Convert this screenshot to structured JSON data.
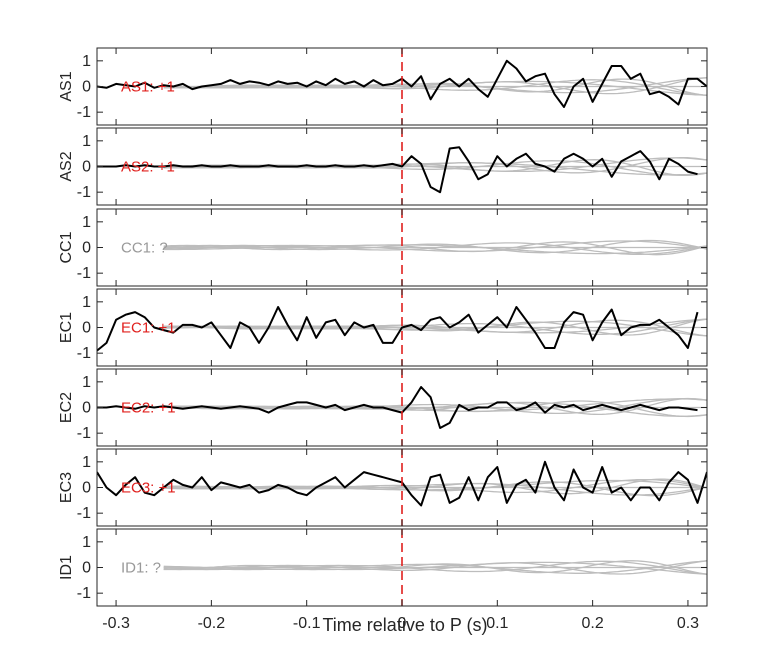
{
  "chart_data": {
    "type": "line",
    "xlabel": "Time relative to P (s)",
    "xlim": [
      -0.32,
      0.32
    ],
    "xticks": [
      -0.3,
      -0.2,
      -0.1,
      0,
      0.1,
      0.2,
      0.3
    ],
    "xtick_labels": [
      "-0.3",
      "-0.2",
      "-0.1",
      "0",
      "0.1",
      "0.2",
      "0.3"
    ],
    "ylim": [
      -1.5,
      1.5
    ],
    "yticks": [
      1,
      0,
      -1
    ],
    "ytick_labels": [
      "1",
      "0",
      "-1"
    ],
    "pick_time": 0,
    "pick_color": "#e0201e",
    "gray_color": "#bdbdbd",
    "trace_color": "#000000",
    "panels": [
      {
        "station": "AS1",
        "annotation": "AS1: +1",
        "annotation_color": "#e0201e",
        "has_trace": true,
        "x": [
          -0.32,
          -0.31,
          -0.3,
          -0.29,
          -0.28,
          -0.27,
          -0.26,
          -0.25,
          -0.24,
          -0.23,
          -0.22,
          -0.21,
          -0.2,
          -0.19,
          -0.18,
          -0.17,
          -0.16,
          -0.15,
          -0.14,
          -0.13,
          -0.12,
          -0.11,
          -0.1,
          -0.09,
          -0.08,
          -0.07,
          -0.06,
          -0.05,
          -0.04,
          -0.03,
          -0.02,
          -0.01,
          0.0,
          0.01,
          0.02,
          0.03,
          0.04,
          0.05,
          0.06,
          0.07,
          0.08,
          0.09,
          0.1,
          0.11,
          0.12,
          0.13,
          0.14,
          0.15,
          0.16,
          0.17,
          0.18,
          0.19,
          0.2,
          0.21,
          0.22,
          0.23,
          0.24,
          0.25,
          0.26,
          0.27,
          0.28,
          0.29,
          0.3,
          0.31,
          0.32
        ],
        "y": [
          0.0,
          -0.05,
          0.1,
          0.05,
          0.0,
          0.15,
          -0.05,
          0.05,
          0.0,
          0.1,
          -0.1,
          0.0,
          0.05,
          0.1,
          0.25,
          0.1,
          0.2,
          0.15,
          0.05,
          0.2,
          0.1,
          0.15,
          0.0,
          0.2,
          0.05,
          0.3,
          0.1,
          0.2,
          0.0,
          0.25,
          0.05,
          0.1,
          0.3,
          0.0,
          0.4,
          -0.5,
          0.1,
          0.3,
          0.0,
          0.3,
          -0.1,
          -0.4,
          0.3,
          1.0,
          0.7,
          0.2,
          0.4,
          0.5,
          -0.3,
          -0.8,
          0.0,
          0.3,
          -0.6,
          0.1,
          0.8,
          0.8,
          0.3,
          0.5,
          -0.3,
          -0.2,
          -0.4,
          -0.7,
          0.3,
          0.3,
          0.0
        ]
      },
      {
        "station": "AS2",
        "annotation": "AS2: +1",
        "annotation_color": "#e0201e",
        "has_trace": true,
        "x": [
          -0.32,
          -0.31,
          -0.3,
          -0.29,
          -0.28,
          -0.27,
          -0.26,
          -0.25,
          -0.24,
          -0.23,
          -0.22,
          -0.21,
          -0.2,
          -0.19,
          -0.18,
          -0.17,
          -0.16,
          -0.15,
          -0.14,
          -0.13,
          -0.12,
          -0.11,
          -0.1,
          -0.09,
          -0.08,
          -0.07,
          -0.06,
          -0.05,
          -0.04,
          -0.03,
          -0.02,
          -0.01,
          0.0,
          0.01,
          0.02,
          0.03,
          0.04,
          0.05,
          0.06,
          0.07,
          0.08,
          0.09,
          0.1,
          0.11,
          0.12,
          0.13,
          0.14,
          0.15,
          0.16,
          0.17,
          0.18,
          0.19,
          0.2,
          0.21,
          0.22,
          0.23,
          0.24,
          0.25,
          0.26,
          0.27,
          0.28,
          0.29,
          0.3,
          0.31
        ],
        "y": [
          0.0,
          0.0,
          0.0,
          0.05,
          0.0,
          0.05,
          0.0,
          0.0,
          0.05,
          0.0,
          0.0,
          0.05,
          0.0,
          0.0,
          0.05,
          0.0,
          0.0,
          0.0,
          0.05,
          0.0,
          0.0,
          0.0,
          0.05,
          0.0,
          0.0,
          0.05,
          0.0,
          0.0,
          0.05,
          0.0,
          0.05,
          0.1,
          0.0,
          0.4,
          0.1,
          -0.8,
          -1.0,
          0.7,
          0.75,
          0.2,
          -0.5,
          -0.3,
          0.4,
          0.0,
          0.3,
          0.5,
          0.1,
          0.0,
          -0.2,
          0.3,
          0.5,
          0.3,
          0.0,
          0.3,
          -0.4,
          0.2,
          0.4,
          0.6,
          0.2,
          -0.5,
          0.3,
          0.1,
          -0.2,
          -0.3
        ]
      },
      {
        "station": "CC1",
        "annotation": "CC1: ?",
        "annotation_color": "#999999",
        "has_trace": false,
        "x": [],
        "y": []
      },
      {
        "station": "EC1",
        "annotation": "EC1: +1",
        "annotation_color": "#e0201e",
        "has_trace": true,
        "x": [
          -0.32,
          -0.31,
          -0.3,
          -0.29,
          -0.28,
          -0.27,
          -0.26,
          -0.25,
          -0.24,
          -0.23,
          -0.22,
          -0.21,
          -0.2,
          -0.19,
          -0.18,
          -0.17,
          -0.16,
          -0.15,
          -0.14,
          -0.13,
          -0.12,
          -0.11,
          -0.1,
          -0.09,
          -0.08,
          -0.07,
          -0.06,
          -0.05,
          -0.04,
          -0.03,
          -0.02,
          -0.01,
          0.0,
          0.01,
          0.02,
          0.03,
          0.04,
          0.05,
          0.06,
          0.07,
          0.08,
          0.09,
          0.1,
          0.11,
          0.12,
          0.13,
          0.14,
          0.15,
          0.16,
          0.17,
          0.18,
          0.19,
          0.2,
          0.21,
          0.22,
          0.23,
          0.24,
          0.25,
          0.26,
          0.27,
          0.28,
          0.29,
          0.3,
          0.31
        ],
        "y": [
          -0.9,
          -0.6,
          0.3,
          0.5,
          0.6,
          0.4,
          0.0,
          -0.1,
          -0.2,
          0.1,
          0.1,
          0.0,
          0.2,
          -0.3,
          -0.8,
          0.2,
          0.0,
          -0.6,
          0.0,
          0.8,
          0.1,
          -0.5,
          0.4,
          -0.4,
          0.2,
          0.3,
          -0.3,
          0.2,
          0.0,
          0.1,
          -0.6,
          -0.6,
          0.0,
          0.1,
          -0.1,
          0.3,
          0.4,
          0.0,
          0.2,
          0.5,
          -0.2,
          0.1,
          0.4,
          0.0,
          0.8,
          0.3,
          -0.2,
          -0.8,
          -0.8,
          0.2,
          0.6,
          0.5,
          -0.5,
          0.2,
          0.7,
          -0.3,
          0.0,
          0.1,
          0.1,
          0.3,
          0.0,
          -0.3,
          -0.8,
          0.6
        ]
      },
      {
        "station": "EC2",
        "annotation": "EC2: +1",
        "annotation_color": "#e0201e",
        "has_trace": true,
        "x": [
          -0.32,
          -0.31,
          -0.3,
          -0.29,
          -0.28,
          -0.27,
          -0.26,
          -0.25,
          -0.24,
          -0.23,
          -0.22,
          -0.21,
          -0.2,
          -0.19,
          -0.18,
          -0.17,
          -0.16,
          -0.15,
          -0.14,
          -0.13,
          -0.12,
          -0.11,
          -0.1,
          -0.09,
          -0.08,
          -0.07,
          -0.06,
          -0.05,
          -0.04,
          -0.03,
          -0.02,
          -0.01,
          0.0,
          0.01,
          0.02,
          0.03,
          0.04,
          0.05,
          0.06,
          0.07,
          0.08,
          0.09,
          0.1,
          0.11,
          0.12,
          0.13,
          0.14,
          0.15,
          0.16,
          0.17,
          0.18,
          0.19,
          0.2,
          0.21,
          0.22,
          0.23,
          0.24,
          0.25,
          0.26,
          0.27,
          0.28,
          0.29,
          0.3,
          0.31
        ],
        "y": [
          0.0,
          0.0,
          0.05,
          0.0,
          -0.05,
          0.05,
          0.0,
          0.05,
          0.0,
          -0.05,
          0.0,
          0.05,
          0.0,
          -0.05,
          0.0,
          0.05,
          0.0,
          -0.05,
          -0.2,
          0.0,
          0.1,
          0.2,
          0.2,
          0.1,
          0.0,
          0.1,
          -0.1,
          0.0,
          0.1,
          0.0,
          0.0,
          -0.1,
          -0.2,
          0.2,
          0.8,
          0.4,
          -0.8,
          -0.6,
          0.1,
          -0.1,
          0.0,
          0.0,
          0.2,
          0.2,
          -0.1,
          0.0,
          0.2,
          -0.2,
          0.1,
          0.0,
          0.1,
          -0.1,
          0.0,
          0.1,
          0.0,
          -0.1,
          0.0,
          0.1,
          0.0,
          -0.1,
          0.0,
          0.0,
          -0.05,
          -0.1
        ]
      },
      {
        "station": "EC3",
        "annotation": "EC3: +1",
        "annotation_color": "#e0201e",
        "has_trace": true,
        "x": [
          -0.32,
          -0.31,
          -0.3,
          -0.29,
          -0.28,
          -0.27,
          -0.26,
          -0.25,
          -0.24,
          -0.23,
          -0.22,
          -0.21,
          -0.2,
          -0.19,
          -0.18,
          -0.17,
          -0.16,
          -0.15,
          -0.14,
          -0.13,
          -0.12,
          -0.11,
          -0.1,
          -0.09,
          -0.08,
          -0.07,
          -0.06,
          -0.05,
          -0.04,
          -0.03,
          -0.02,
          -0.01,
          0.0,
          0.01,
          0.02,
          0.03,
          0.04,
          0.05,
          0.06,
          0.07,
          0.08,
          0.09,
          0.1,
          0.11,
          0.12,
          0.13,
          0.14,
          0.15,
          0.16,
          0.17,
          0.18,
          0.19,
          0.2,
          0.21,
          0.22,
          0.23,
          0.24,
          0.25,
          0.26,
          0.27,
          0.28,
          0.29,
          0.3,
          0.31,
          0.32
        ],
        "y": [
          0.6,
          0.0,
          -0.3,
          0.1,
          0.4,
          -0.2,
          -0.3,
          0.0,
          0.3,
          0.1,
          0.0,
          0.4,
          -0.1,
          0.2,
          0.1,
          0.0,
          0.1,
          -0.2,
          -0.1,
          0.1,
          0.0,
          -0.2,
          -0.3,
          0.0,
          0.2,
          0.4,
          0.0,
          0.3,
          0.6,
          0.5,
          0.4,
          0.3,
          0.2,
          -0.3,
          -0.7,
          0.4,
          0.5,
          -0.6,
          -0.4,
          0.4,
          -0.5,
          0.4,
          0.8,
          -0.6,
          0.1,
          0.3,
          -0.2,
          1.0,
          0.0,
          -0.5,
          0.7,
          0.0,
          -0.2,
          0.8,
          -0.2,
          0.0,
          -0.5,
          0.0,
          0.0,
          -0.5,
          0.2,
          0.6,
          0.3,
          -0.6,
          0.6
        ]
      },
      {
        "station": "ID1",
        "annotation": "ID1: ?",
        "annotation_color": "#999999",
        "has_trace": false,
        "x": [],
        "y": []
      }
    ]
  }
}
